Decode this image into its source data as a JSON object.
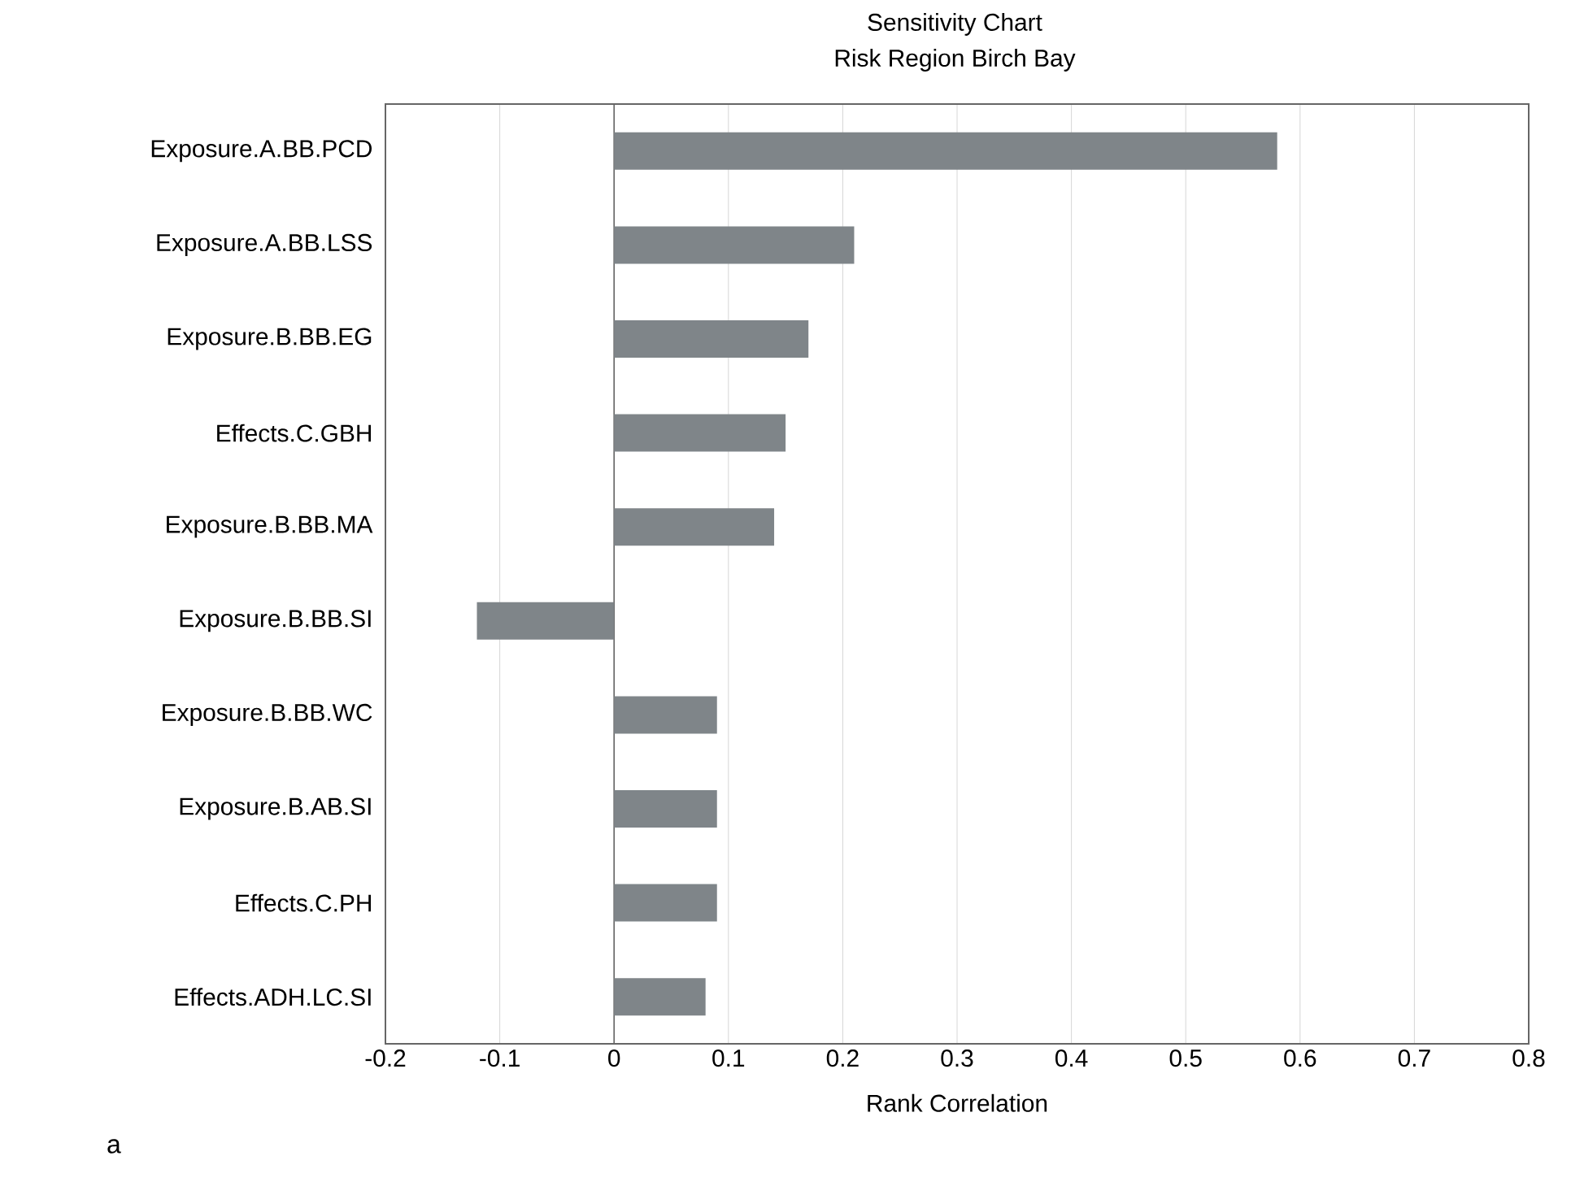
{
  "chart_data": {
    "type": "bar",
    "orientation": "horizontal",
    "title": "Sensitivity Chart",
    "subtitle": "Risk Region Birch Bay",
    "xlabel": "Rank Correlation",
    "categories": [
      "Exposure.A.BB.PCD",
      "Exposure.A.BB.LSS",
      "Exposure.B.BB.EG",
      "Effects.C.GBH",
      "Exposure.B.BB.MA",
      "Exposure.B.BB.SI",
      "Exposure.B.BB.WC",
      "Exposure.B.AB.SI",
      "Effects.C.PH",
      "Effects.ADH.LC.SI"
    ],
    "values": [
      0.58,
      0.21,
      0.17,
      0.15,
      0.14,
      -0.12,
      0.09,
      0.09,
      0.09,
      0.08
    ],
    "color": "#7f8589",
    "xlim": [
      -0.2,
      0.8
    ],
    "xticks": [
      -0.2,
      -0.1,
      0,
      0.1,
      0.2,
      0.3,
      0.4,
      0.5,
      0.6,
      0.7,
      0.8
    ],
    "grid": "x",
    "annotations": [
      "a"
    ]
  }
}
